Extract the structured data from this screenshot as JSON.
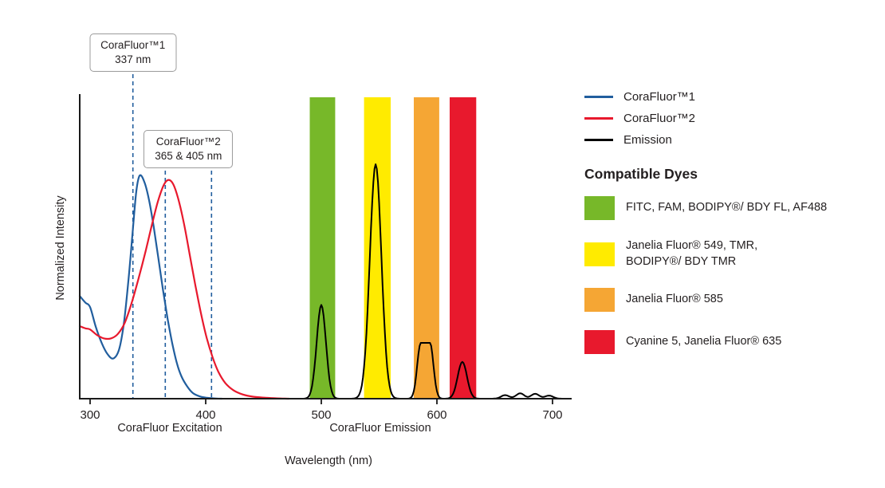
{
  "figure": {
    "annotations": [
      {
        "title": "CoraFluor™1",
        "subtitle": "337 nm",
        "lines_nm": [
          337
        ]
      },
      {
        "title": "CoraFluor™2",
        "subtitle": "365 & 405 nm",
        "lines_nm": [
          365,
          405
        ]
      }
    ]
  },
  "axes": {
    "y_label": "Normalized Intensity",
    "x_label": "Wavelength (nm)",
    "x_ticks": [
      "300",
      "400",
      "500",
      "600",
      "700"
    ],
    "region_labels": [
      {
        "label": "CoraFluor Excitation"
      },
      {
        "label": "CoraFluor Emission"
      }
    ]
  },
  "legend": {
    "series": [
      {
        "label": "CoraFluor™1",
        "color": "#215e9e"
      },
      {
        "label": "CoraFluor™2",
        "color": "#e8192d"
      },
      {
        "label": "Emission",
        "color": "#000000"
      }
    ],
    "dyes_heading": "Compatible Dyes",
    "dyes": [
      {
        "label": "FITC, FAM, BODIPY®/ BDY FL, AF488",
        "color": "#77b829"
      },
      {
        "label": "Janelia Fluor® 549, TMR,\nBODIPY®/ BDY TMR",
        "color": "#ffeb00"
      },
      {
        "label": "Janelia Fluor® 585",
        "color": "#f5a634"
      },
      {
        "label": "Cyanine 5, Janelia Fluor® 635",
        "color": "#e8192d"
      }
    ]
  },
  "chart_data": {
    "type": "line",
    "x_unit": "nm",
    "x_axis_range": [
      291,
      715
    ],
    "y_axis": "normalized intensity (0-1)",
    "grid": false,
    "legend_position": "right",
    "dash_color": "#215e9e",
    "excitation_markers_nm": [
      337,
      365,
      405
    ],
    "excitation_series": [
      {
        "name": "CoraFluor™1",
        "color": "#215e9e",
        "points": [
          [
            291,
            0.46
          ],
          [
            296,
            0.43
          ],
          [
            300,
            0.41
          ],
          [
            305,
            0.32
          ],
          [
            310,
            0.25
          ],
          [
            315,
            0.2
          ],
          [
            320,
            0.18
          ],
          [
            325,
            0.22
          ],
          [
            329,
            0.33
          ],
          [
            333,
            0.52
          ],
          [
            337,
            0.76
          ],
          [
            340,
            0.93
          ],
          [
            343,
            1.0
          ],
          [
            347,
            0.97
          ],
          [
            351,
            0.89
          ],
          [
            355,
            0.77
          ],
          [
            359,
            0.63
          ],
          [
            363,
            0.49
          ],
          [
            367,
            0.36
          ],
          [
            371,
            0.25
          ],
          [
            375,
            0.16
          ],
          [
            379,
            0.1
          ],
          [
            384,
            0.055
          ],
          [
            389,
            0.025
          ],
          [
            395,
            0.01
          ],
          [
            401,
            0.004
          ],
          [
            408,
            0.001
          ],
          [
            414,
            0
          ]
        ]
      },
      {
        "name": "CoraFluor™2",
        "color": "#e8192d",
        "points": [
          [
            291,
            0.325
          ],
          [
            296,
            0.315
          ],
          [
            300,
            0.31
          ],
          [
            306,
            0.285
          ],
          [
            312,
            0.27
          ],
          [
            318,
            0.27
          ],
          [
            324,
            0.29
          ],
          [
            330,
            0.34
          ],
          [
            336,
            0.43
          ],
          [
            342,
            0.54
          ],
          [
            348,
            0.66
          ],
          [
            354,
            0.79
          ],
          [
            359,
            0.89
          ],
          [
            364,
            0.96
          ],
          [
            368,
            0.98
          ],
          [
            372,
            0.96
          ],
          [
            376,
            0.9
          ],
          [
            381,
            0.79
          ],
          [
            386,
            0.65
          ],
          [
            391,
            0.51
          ],
          [
            396,
            0.38
          ],
          [
            401,
            0.27
          ],
          [
            406,
            0.185
          ],
          [
            411,
            0.12
          ],
          [
            417,
            0.07
          ],
          [
            424,
            0.038
          ],
          [
            432,
            0.019
          ],
          [
            441,
            0.009
          ],
          [
            452,
            0.004
          ],
          [
            462,
            0.0015
          ],
          [
            472,
            0
          ]
        ]
      }
    ],
    "emission_series": {
      "name": "Emission",
      "color": "#000000",
      "peaks": [
        {
          "center_nm": 500,
          "intensity": 0.42,
          "sigma": 4,
          "flat_halfwidth": 0
        },
        {
          "center_nm": 547,
          "intensity": 1.05,
          "sigma": 5,
          "flat_halfwidth": 0
        },
        {
          "center_nm": 590,
          "intensity": 0.25,
          "sigma": 3,
          "flat_halfwidth": 4
        },
        {
          "center_nm": 622,
          "intensity": 0.165,
          "sigma": 4,
          "flat_halfwidth": 0
        },
        {
          "center_nm": 659,
          "intensity": 0.016,
          "sigma": 3.5,
          "flat_halfwidth": 0
        },
        {
          "center_nm": 672,
          "intensity": 0.024,
          "sigma": 3.5,
          "flat_halfwidth": 0
        },
        {
          "center_nm": 685,
          "intensity": 0.022,
          "sigma": 3.5,
          "flat_halfwidth": 0
        },
        {
          "center_nm": 697,
          "intensity": 0.014,
          "sigma": 3.5,
          "flat_halfwidth": 0
        }
      ]
    },
    "filter_bands": [
      {
        "label": "FITC, FAM, BODIPY®/ BDY FL, AF488",
        "range_nm": [
          490,
          512
        ],
        "color": "#77b829"
      },
      {
        "label": "Janelia Fluor® 549, TMR, BODIPY®/ BDY TMR",
        "range_nm": [
          537,
          560
        ],
        "color": "#ffeb00"
      },
      {
        "label": "Janelia Fluor® 585",
        "range_nm": [
          580,
          602
        ],
        "color": "#f5a634"
      },
      {
        "label": "Cyanine 5, Janelia Fluor® 635",
        "range_nm": [
          611,
          634
        ],
        "color": "#e8192d"
      }
    ]
  }
}
